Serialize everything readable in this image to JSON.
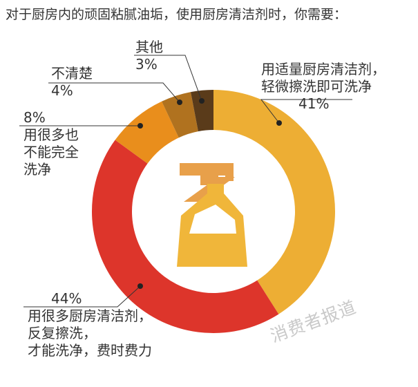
{
  "title": "对于厨房内的顽固粘腻油垢，使用厨房清洁剂时，你需要：",
  "watermark": "消费者报道",
  "icon": "spray-bottle-icon",
  "colors": {
    "accent": "#e8a93a",
    "icon_trigger": "#e8a04a",
    "icon_bottle": "#f0b63a",
    "leader": "#333333"
  },
  "chart_data": {
    "type": "pie",
    "donut": true,
    "slices": [
      {
        "value": 41,
        "pct_label": "41%",
        "lines": [
          "用适量厨房清洁剂，",
          "轻微擦洗即可洗净"
        ],
        "color": "#edae34"
      },
      {
        "value": 44,
        "pct_label": "44%",
        "lines": [
          "用很多厨房清洁剂，",
          "反复擦洗，",
          "才能洗净，费时费力"
        ],
        "color": "#dd352b"
      },
      {
        "value": 8,
        "pct_label": "8%",
        "lines": [
          "用很多也",
          "不能完全",
          "洗净"
        ],
        "color": "#e98e1c"
      },
      {
        "value": 4,
        "pct_label": "4%",
        "lines": [
          "不清楚"
        ],
        "color": "#b0721f"
      },
      {
        "value": 3,
        "pct_label": "3%",
        "lines": [
          "其他"
        ],
        "color": "#5a3b1a"
      }
    ]
  }
}
